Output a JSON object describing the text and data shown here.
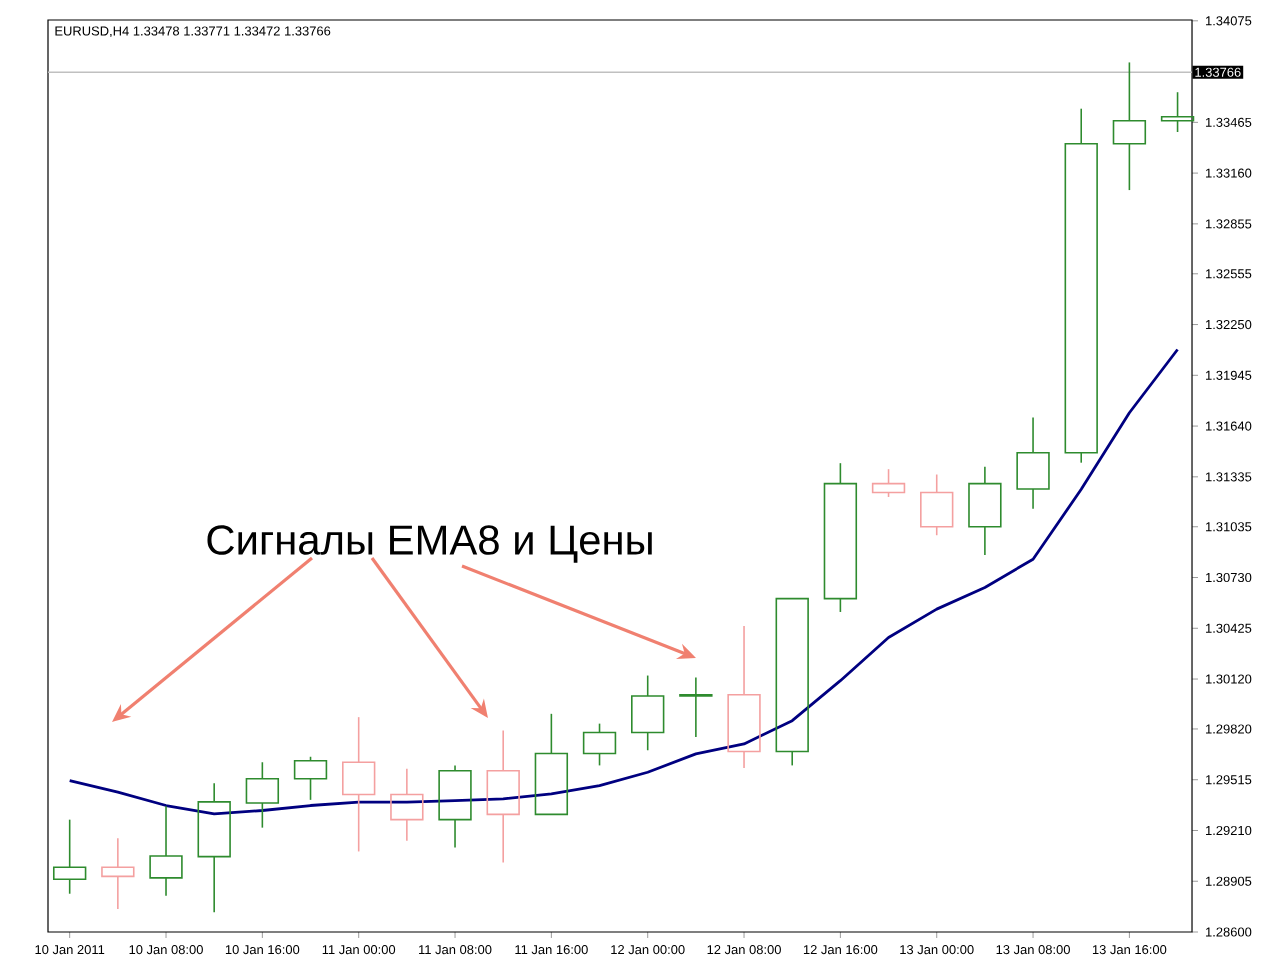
{
  "chart_data": {
    "type": "candlestick",
    "title": "EURUSD,H4  1.33478 1.33771 1.33472 1.33766",
    "annotations": [
      "Сигналы EMA8 и Цены"
    ],
    "categories": [
      "10 Jan 2011",
      null,
      "10 Jan 08:00",
      null,
      "10 Jan 16:00",
      null,
      "11 Jan 00:00",
      null,
      "11 Jan 08:00",
      null,
      "11 Jan 16:00",
      null,
      "12 Jan 00:00",
      null,
      "12 Jan 08:00",
      null,
      "12 Jan 16:00",
      null,
      "13 Jan 00:00",
      null,
      "13 Jan 08:00",
      null,
      "13 Jan 16:00",
      null
    ],
    "ohlc": [
      [
        1.28917,
        1.29275,
        1.2883,
        1.28989
      ],
      [
        1.28989,
        1.29164,
        1.28738,
        1.28934
      ],
      [
        1.28925,
        1.29355,
        1.28818,
        1.29057
      ],
      [
        1.29053,
        1.29494,
        1.28719,
        1.29382
      ],
      [
        1.29375,
        1.2962,
        1.29227,
        1.29521
      ],
      [
        1.29521,
        1.29653,
        1.29394,
        1.29629
      ],
      [
        1.2962,
        1.29891,
        1.29084,
        1.29426
      ],
      [
        1.29426,
        1.29581,
        1.29148,
        1.29275
      ],
      [
        1.29275,
        1.29601,
        1.29108,
        1.29569
      ],
      [
        1.29569,
        1.29811,
        1.29017,
        1.29307
      ],
      [
        1.29307,
        1.29911,
        1.29307,
        1.29673
      ],
      [
        1.29673,
        1.29852,
        1.29601,
        1.29799
      ],
      [
        1.29799,
        1.30141,
        1.29692,
        1.30018
      ],
      [
        1.30018,
        1.30129,
        1.29772,
        1.30026
      ],
      [
        1.30026,
        1.30439,
        1.29585,
        1.29685
      ],
      [
        1.29685,
        1.30603,
        1.29601,
        1.30603
      ],
      [
        1.30603,
        1.31417,
        1.30523,
        1.31294
      ],
      [
        1.31294,
        1.31381,
        1.31214,
        1.31241
      ],
      [
        1.31241,
        1.31349,
        1.30984,
        1.31035
      ],
      [
        1.31035,
        1.31396,
        1.30865,
        1.31294
      ],
      [
        1.31262,
        1.31691,
        1.31143,
        1.3148
      ],
      [
        1.3148,
        1.33547,
        1.3142,
        1.33336
      ],
      [
        1.33336,
        1.33825,
        1.33058,
        1.33475
      ],
      [
        1.33475,
        1.33646,
        1.33407,
        1.33499
      ]
    ],
    "colors": [
      "#2e8b2e",
      "#f4a0a0",
      "#2e8b2e",
      "#2e8b2e",
      "#2e8b2e",
      "#2e8b2e",
      "#f4a0a0",
      "#f4a0a0",
      "#2e8b2e",
      "#f4a0a0",
      "#2e8b2e",
      "#2e8b2e",
      "#2e8b2e",
      "#2e8b2e",
      "#f4a0a0",
      "#2e8b2e",
      "#2e8b2e",
      "#f4a0a0",
      "#f4a0a0",
      "#2e8b2e",
      "#2e8b2e",
      "#2e8b2e",
      "#2e8b2e",
      "#2e8b2e"
    ],
    "series": [
      {
        "type": "line",
        "color": "#000080",
        "values": [
          1.2951,
          1.2944,
          1.2936,
          1.2931,
          1.2933,
          1.2936,
          1.2938,
          1.2938,
          1.2939,
          1.294,
          1.2943,
          1.2948,
          1.2956,
          1.2967,
          1.2973,
          1.2987,
          1.3011,
          1.3037,
          1.3054,
          1.3067,
          1.3084,
          1.3126,
          1.3172,
          1.321
        ]
      }
    ],
    "ylim": [
      1.286,
      1.3408
    ],
    "yticks": [
      {
        "value": 1.286,
        "label": "1.28600"
      },
      {
        "value": 1.28905,
        "label": "1.28905"
      },
      {
        "value": 1.2921,
        "label": "1.29210"
      },
      {
        "value": 1.29515,
        "label": "1.29515"
      },
      {
        "value": 1.2982,
        "label": "1.29820"
      },
      {
        "value": 1.3012,
        "label": "1.30120"
      },
      {
        "value": 1.30425,
        "label": "1.30425"
      },
      {
        "value": 1.3073,
        "label": "1.30730"
      },
      {
        "value": 1.31035,
        "label": "1.31035"
      },
      {
        "value": 1.31335,
        "label": "1.31335"
      },
      {
        "value": 1.3164,
        "label": "1.31640"
      },
      {
        "value": 1.31945,
        "label": "1.31945"
      },
      {
        "value": 1.3225,
        "label": "1.32250"
      },
      {
        "value": 1.32555,
        "label": "1.32555"
      },
      {
        "value": 1.32855,
        "label": "1.32855"
      },
      {
        "value": 1.3316,
        "label": "1.33160"
      },
      {
        "value": 1.33465,
        "label": "1.33465"
      },
      {
        "value": 1.34075,
        "label": "1.34075"
      }
    ],
    "ref_lines": [
      {
        "axis": "y",
        "value": 1.33766,
        "label": "1.33766",
        "color": "#c0c0c0"
      }
    ]
  }
}
